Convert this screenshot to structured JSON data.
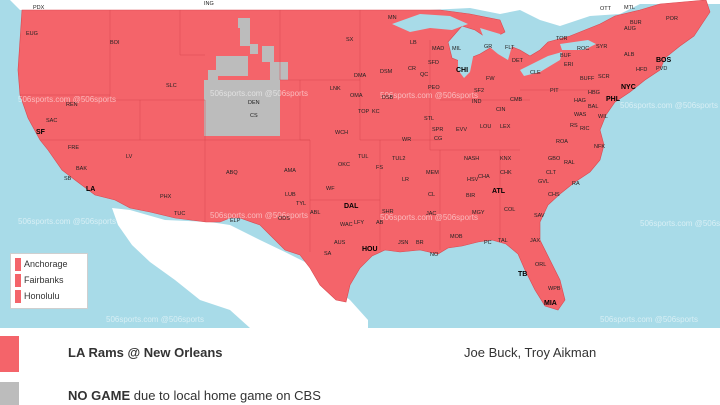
{
  "colors": {
    "ocean": "#a8dbe8",
    "coverage": "#f4646a",
    "no_game": "#bcbcbc",
    "foreign_land": "#ffffff",
    "lake": "#a8dbe8"
  },
  "markets": [
    "PDX",
    "EUG",
    "BOI",
    "ING",
    "MTL",
    "OTT",
    "BUR",
    "POR",
    "BOS",
    "SYR",
    "ALB",
    "HFD",
    "NYC",
    "PHL",
    "TOR",
    "ROC",
    "BUF",
    "ERI",
    "PIT",
    "CLE",
    "DET",
    "FLT",
    "GR",
    "MIL",
    "MAD",
    "CHI",
    "MN",
    "SF",
    "SAC",
    "REN",
    "SLC",
    "DEN",
    "CS",
    "LA",
    "SB",
    "FRE",
    "BAK",
    "LV",
    "PHX",
    "TUC",
    "ABQ",
    "ELP",
    "AMA",
    "LUB",
    "ODS",
    "ABL",
    "WF",
    "DAL",
    "WAC",
    "AUS",
    "SA",
    "HOU",
    "SHR",
    "LR",
    "MEM",
    "JAC",
    "BR",
    "NO",
    "MOB",
    "PC",
    "TAL",
    "JAX",
    "ORL",
    "TB",
    "WPB",
    "MIA",
    "ATL",
    "CHA",
    "KNX",
    "NASH",
    "HSV",
    "BIR",
    "MGY",
    "COL",
    "SAV",
    "CHS",
    "RAL",
    "GBO",
    "CLT",
    "RIC",
    "NFK",
    "WAS",
    "BAL",
    "ROA",
    "IND",
    "CIN",
    "CMB",
    "LOU",
    "LEX",
    "EVV",
    "STL",
    "SPR",
    "KC",
    "TOP",
    "OKC",
    "TUL",
    "WCH",
    "OMA",
    "DSM",
    "CR",
    "QC",
    "PEO",
    "SFD",
    "FW",
    "SF2",
    "LNK",
    "SX",
    "FS",
    "WR",
    "CG",
    "DMA",
    "DSB",
    "LB",
    "AUG",
    "GVL",
    "CHK",
    "RS",
    "SCR",
    "PVD",
    "HBG",
    "WIL",
    "BUFF",
    "TUL2",
    "AB",
    "HAG",
    "RA",
    "CL",
    "JSN",
    "LFY",
    "TYL",
    "LUF"
  ],
  "watermarks": [
    "506sports.com @506sports"
  ],
  "legend": {
    "items": [
      "Anchorage",
      "Fairbanks",
      "Honolulu"
    ]
  },
  "key": {
    "game": {
      "matchup": "LA Rams @ New Orleans",
      "announcers": "Joe Buck, Troy Aikman"
    },
    "no_game": {
      "bold": "NO GAME",
      "rest": " due to local home game on CBS"
    }
  }
}
